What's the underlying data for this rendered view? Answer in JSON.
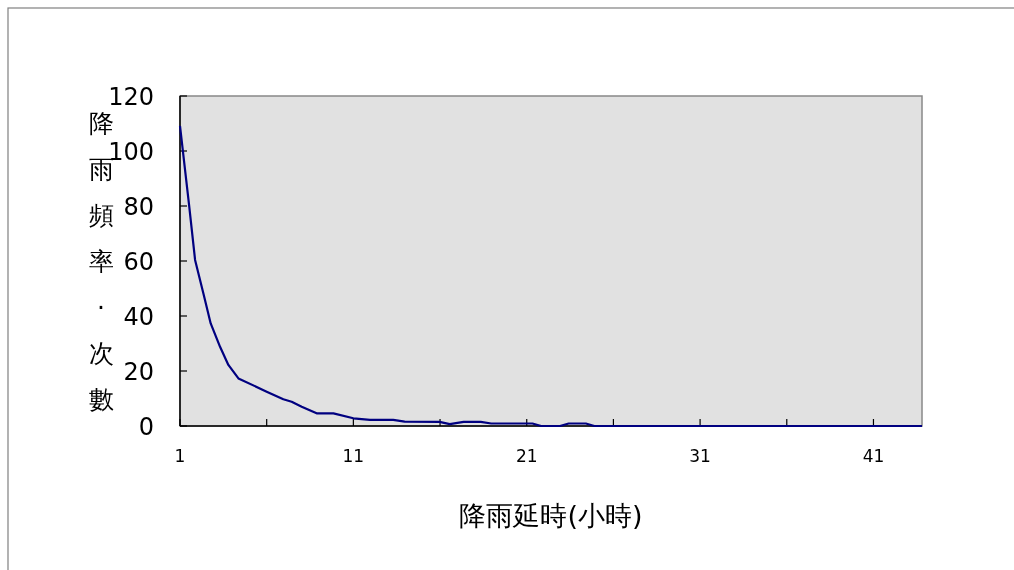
{
  "chart_data": {
    "type": "line",
    "xlabel": "降雨延時(小時)",
    "ylabel": "降雨頻率·次數",
    "x": [
      1,
      1.52,
      1.87,
      2.35,
      2.77,
      3.31,
      3.79,
      4.37,
      6.0,
      6.96,
      7.44,
      8.02,
      8.88,
      9.85,
      11.0,
      11.96,
      13.3,
      13.96,
      15.97,
      16.56,
      17.36,
      18.35,
      18.95,
      21.33,
      21.83,
      22.92,
      23.42,
      24.41,
      24.9,
      43.8
    ],
    "series": [
      {
        "color": "#000080",
        "values": [
          109.1,
          80.6,
          60.4,
          48.2,
          37.3,
          28.8,
          22.2,
          17.3,
          12.5,
          9.7,
          8.8,
          7.0,
          4.6,
          4.6,
          2.8,
          2.2,
          2.2,
          1.6,
          1.5,
          0.7,
          1.5,
          1.5,
          0.9,
          0.9,
          0,
          0,
          0.9,
          0.9,
          0,
          0
        ]
      }
    ],
    "xlim": [
      1,
      43.8
    ],
    "ylim": [
      0,
      120
    ],
    "xticks": [
      1,
      {
        "value": 6,
        "label": null
      },
      11,
      {
        "value": 16,
        "label": null
      },
      21,
      {
        "value": 26,
        "label": null
      },
      31,
      {
        "value": 36,
        "label": null
      },
      41
    ],
    "yticks": [
      0,
      20,
      40,
      60,
      80,
      100,
      120
    ],
    "grid": false,
    "marker": "none",
    "line_style": "solid"
  }
}
